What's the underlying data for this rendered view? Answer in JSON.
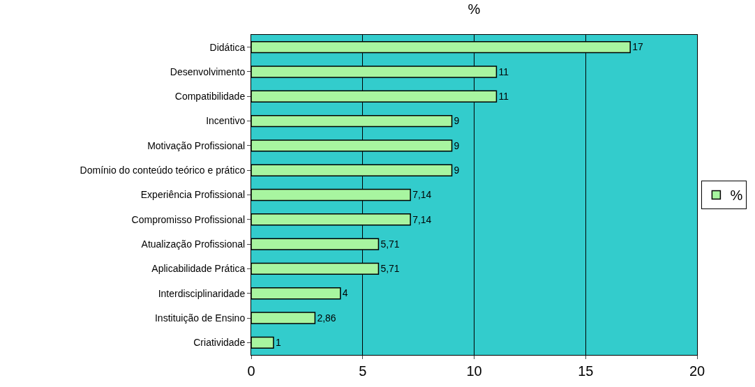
{
  "chart_data": {
    "type": "bar",
    "orientation": "horizontal",
    "title": "%",
    "categories": [
      "Didática",
      "Desenvolvimento",
      "Compatibilidade",
      "Incentivo",
      "Motivação Profissional",
      "Domínio do conteúdo teórico e prático",
      "Experiência Profissional",
      "Compromisso Profissional",
      "Atualização Profissional",
      "Aplicabilidade Prática",
      "Interdisciplinaridade",
      "Instituição de Ensino",
      "Criatividade"
    ],
    "series": [
      {
        "name": "%",
        "color": "#a8f5a0",
        "values": [
          17,
          11,
          11,
          9,
          9,
          9,
          7.14,
          7.14,
          5.71,
          5.71,
          4,
          2.86,
          1
        ],
        "value_labels": [
          "17",
          "11",
          "11",
          "9",
          "9",
          "9",
          "7,14",
          "7,14",
          "5,71",
          "5,71",
          "4",
          "2,86",
          "1"
        ]
      }
    ],
    "xlim": [
      0,
      20
    ],
    "xticks": [
      0,
      5,
      10,
      15,
      20
    ],
    "grid": "x",
    "legend": "right"
  }
}
